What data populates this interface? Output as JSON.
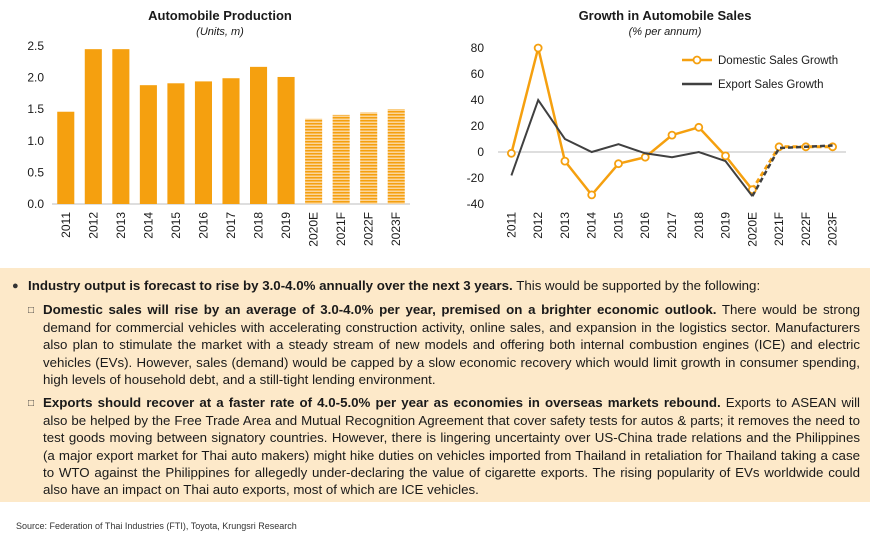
{
  "chart_data": [
    {
      "type": "bar",
      "title": "Automobile Production",
      "subtitle": "(Units, m)",
      "categories": [
        "2011",
        "2012",
        "2013",
        "2014",
        "2015",
        "2016",
        "2017",
        "2018",
        "2019",
        "2020E",
        "2021F",
        "2022F",
        "2023F"
      ],
      "values": [
        1.46,
        2.45,
        2.45,
        1.88,
        1.91,
        1.94,
        1.99,
        2.17,
        2.01,
        1.35,
        1.41,
        1.45,
        1.5
      ],
      "forecast_start_index": 9,
      "ylim": [
        0,
        2.5
      ],
      "yticks": [
        "0.0",
        "0.5",
        "1.0",
        "1.5",
        "2.0",
        "2.5"
      ],
      "grid": false,
      "color": "#f5a00f"
    },
    {
      "type": "line",
      "title": "Growth in Automobile Sales",
      "subtitle": "(% per annum)",
      "categories": [
        "2011",
        "2012",
        "2013",
        "2014",
        "2015",
        "2016",
        "2017",
        "2018",
        "2019",
        "2020E",
        "2021F",
        "2022F",
        "2023F"
      ],
      "series": [
        {
          "name": "Domestic Sales Growth",
          "color": "#f5a00f",
          "marker": "circle",
          "values": [
            -1,
            80,
            -7,
            -33,
            -9,
            -4,
            13,
            19,
            -3,
            -29,
            4,
            4,
            4
          ]
        },
        {
          "name": "Export Sales Growth",
          "color": "#404040",
          "marker": "none",
          "values": [
            -18,
            40,
            10,
            0,
            6,
            -1,
            -4,
            0,
            -7,
            -34,
            3,
            4,
            5
          ]
        }
      ],
      "forecast_start_index": 9,
      "ylim": [
        -40,
        80
      ],
      "yticks": [
        "-40",
        "-20",
        "0",
        "20",
        "40",
        "60",
        "80"
      ],
      "legend": "top-right",
      "grid": false
    }
  ],
  "summary": {
    "main_bold": "Industry output is forecast to rise by 3.0-4.0% annually over the next 3 years.",
    "main_text": " This would be supported by the following:",
    "points": [
      {
        "bold": "Domestic sales will rise by an average of 3.0-4.0% per year, premised on a brighter economic outlook.",
        "text": " There would be strong demand for commercial vehicles with accelerating construction activity, online sales, and expansion in the logistics sector. Manufacturers also plan to stimulate the market with a steady stream of new models and offering both internal combustion engines (ICE) and electric vehicles (EVs). However, sales (demand) would be capped by a slow economic recovery which would limit growth in consumer spending, high levels of household debt, and a still-tight lending environment."
      },
      {
        "bold": "Exports should recover at a faster rate of 4.0-5.0% per year as economies in overseas markets rebound.",
        "text": " Exports to ASEAN will also be helped by the Free Trade Area and Mutual Recognition Agreement that cover safety tests for autos & parts; it removes the need to test goods moving between signatory countries. However, there is lingering uncertainty over US-China trade relations and the Philippines (a major export market for Thai auto makers) might hike duties on vehicles imported from Thailand in retaliation for Thailand taking a case to WTO against the Philippines for allegedly under-declaring the value of cigarette exports. The rising popularity of EVs worldwide could also have an impact on Thai auto exports, most of which are ICE vehicles."
      }
    ]
  },
  "source": "Source: Federation of Thai Industries (FTI), Toyota, Krungsri Research"
}
